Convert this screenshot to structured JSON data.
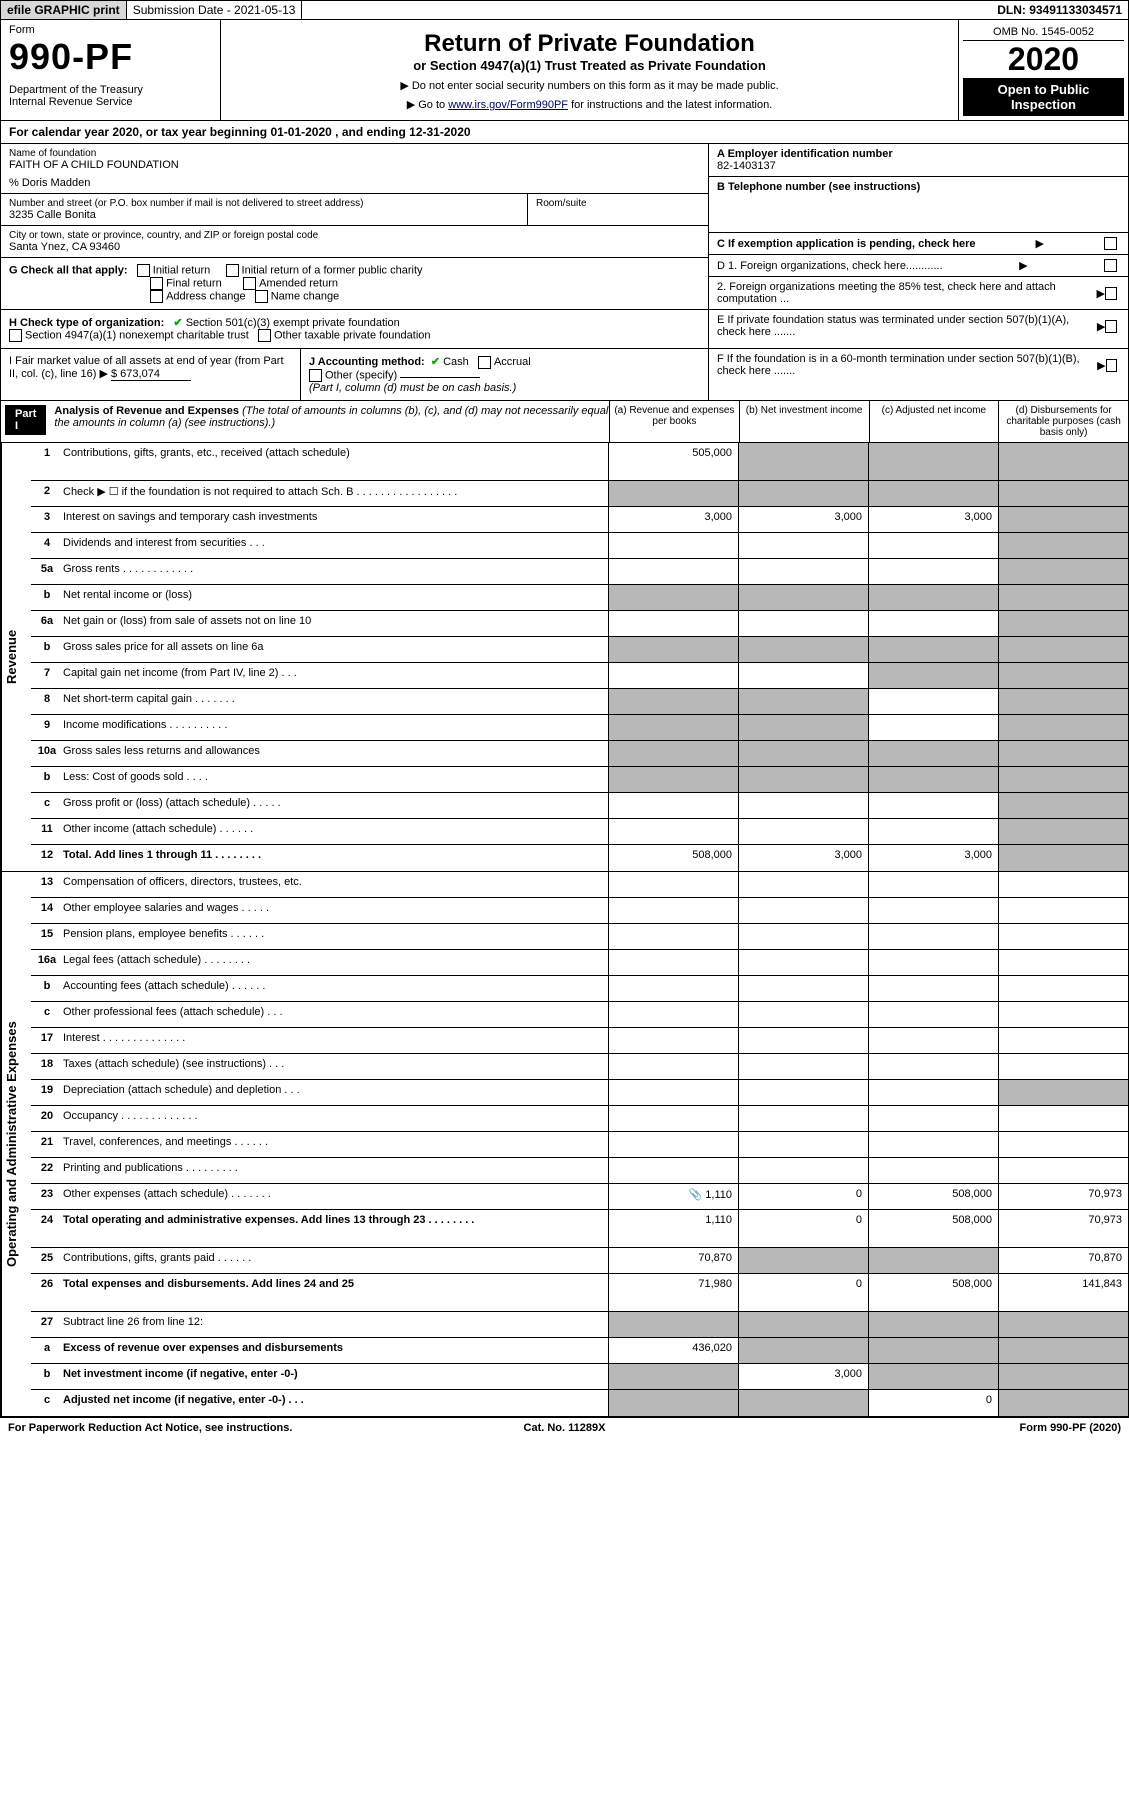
{
  "top": {
    "print": "efile GRAPHIC print",
    "subm": "Submission Date - 2021-05-13",
    "dln": "DLN: 93491133034571"
  },
  "header": {
    "form": "Form",
    "number": "990-PF",
    "dept": "Department of the Treasury\nInternal Revenue Service",
    "title": "Return of Private Foundation",
    "subtitle": "or Section 4947(a)(1) Trust Treated as Private Foundation",
    "instr1": "▶ Do not enter social security numbers on this form as it may be made public.",
    "instr2a": "▶ Go to ",
    "instr2_link": "www.irs.gov/Form990PF",
    "instr2b": " for instructions and the latest information.",
    "omb": "OMB No. 1545-0052",
    "year": "2020",
    "open": "Open to Public Inspection"
  },
  "cal": "For calendar year 2020, or tax year beginning 01-01-2020            , and ending 12-31-2020",
  "org": {
    "name_label": "Name of foundation",
    "name": "FAITH OF A CHILD FOUNDATION",
    "co": "% Doris Madden",
    "addr_label": "Number and street (or P.O. box number if mail is not delivered to street address)",
    "addr": "3235 Calle Bonita",
    "room_label": "Room/suite",
    "city_label": "City or town, state or province, country, and ZIP or foreign postal code",
    "city": "Santa Ynez, CA  93460",
    "ein_label": "A Employer identification number",
    "ein": "82-1403137",
    "tel_label": "B Telephone number (see instructions)",
    "c_label": "C If exemption application is pending, check here"
  },
  "checks": {
    "g_label": "G Check all that apply:",
    "g1": "Initial return",
    "g2": "Initial return of a former public charity",
    "g3": "Final return",
    "g4": "Amended return",
    "g5": "Address change",
    "g6": "Name change",
    "h_label": "H Check type of organization:",
    "h1": "Section 501(c)(3) exempt private foundation",
    "h2": "Section 4947(a)(1) nonexempt charitable trust",
    "h3": "Other taxable private foundation",
    "i_label": "I Fair market value of all assets at end of year (from Part II, col. (c), line 16)",
    "i_val": "$ 673,074",
    "j_label": "J Accounting method:",
    "j1": "Cash",
    "j2": "Accrual",
    "j3": "Other (specify)",
    "j_note": "(Part I, column (d) must be on cash basis.)",
    "d1": "D 1. Foreign organizations, check here............",
    "d2": "2. Foreign organizations meeting the 85% test, check here and attach computation ...",
    "e": "E  If private foundation status was terminated under section 507(b)(1)(A), check here .......",
    "f": "F  If the foundation is in a 60-month termination under section 507(b)(1)(B), check here ......."
  },
  "part1": {
    "label": "Part I",
    "title": "Analysis of Revenue and Expenses",
    "title_note": " (The total of amounts in columns (b), (c), and (d) may not necessarily equal the amounts in column (a) (see instructions).)",
    "col_a": "(a)  Revenue and expenses per books",
    "col_b": "(b)  Net investment income",
    "col_c": "(c)  Adjusted net income",
    "col_d": "(d)  Disbursements for charitable purposes (cash basis only)"
  },
  "tabs": {
    "rev": "Revenue",
    "exp": "Operating and Administrative Expenses"
  },
  "rows": {
    "r1": {
      "n": "1",
      "d": "Contributions, gifts, grants, etc., received (attach schedule)",
      "a": "505,000"
    },
    "r2": {
      "n": "2",
      "d": "Check ▶ ☐ if the foundation is not required to attach Sch. B   .  .  .  .  .  .  .  .  .  .  .  .  .  .  .  .  ."
    },
    "r3": {
      "n": "3",
      "d": "Interest on savings and temporary cash investments",
      "a": "3,000",
      "b": "3,000",
      "c": "3,000"
    },
    "r4": {
      "n": "4",
      "d": "Dividends and interest from securities   .  .  ."
    },
    "r5a": {
      "n": "5a",
      "d": "Gross rents   .  .  .  .  .  .  .  .  .  .  .  ."
    },
    "r5b": {
      "n": "b",
      "d": "Net rental income or (loss)"
    },
    "r6a": {
      "n": "6a",
      "d": "Net gain or (loss) from sale of assets not on line 10"
    },
    "r6b": {
      "n": "b",
      "d": "Gross sales price for all assets on line 6a"
    },
    "r7": {
      "n": "7",
      "d": "Capital gain net income (from Part IV, line 2)   .  .  ."
    },
    "r8": {
      "n": "8",
      "d": "Net short-term capital gain   .  .  .  .  .  .  ."
    },
    "r9": {
      "n": "9",
      "d": "Income modifications   .  .  .  .  .  .  .  .  .  ."
    },
    "r10a": {
      "n": "10a",
      "d": "Gross sales less returns and allowances"
    },
    "r10b": {
      "n": "b",
      "d": "Less: Cost of goods sold   .  .  .  ."
    },
    "r10c": {
      "n": "c",
      "d": "Gross profit or (loss) (attach schedule)   .  .  .  .  ."
    },
    "r11": {
      "n": "11",
      "d": "Other income (attach schedule)   .  .  .  .  .  ."
    },
    "r12": {
      "n": "12",
      "d": "Total. Add lines 1 through 11   .  .  .  .  .  .  .  .",
      "a": "508,000",
      "b": "3,000",
      "c": "3,000"
    },
    "r13": {
      "n": "13",
      "d": "Compensation of officers, directors, trustees, etc."
    },
    "r14": {
      "n": "14",
      "d": "Other employee salaries and wages   .  .  .  .  ."
    },
    "r15": {
      "n": "15",
      "d": "Pension plans, employee benefits   .  .  .  .  .  ."
    },
    "r16a": {
      "n": "16a",
      "d": "Legal fees (attach schedule)   .  .  .  .  .  .  .  ."
    },
    "r16b": {
      "n": "b",
      "d": "Accounting fees (attach schedule)   .  .  .  .  .  ."
    },
    "r16c": {
      "n": "c",
      "d": "Other professional fees (attach schedule)   .  .  ."
    },
    "r17": {
      "n": "17",
      "d": "Interest  .  .  .  .  .  .  .  .  .  .  .  .  .  ."
    },
    "r18": {
      "n": "18",
      "d": "Taxes (attach schedule) (see instructions)   .  .  ."
    },
    "r19": {
      "n": "19",
      "d": "Depreciation (attach schedule) and depletion    .  .  ."
    },
    "r20": {
      "n": "20",
      "d": "Occupancy  .  .  .  .  .  .  .  .  .  .  .  .  ."
    },
    "r21": {
      "n": "21",
      "d": "Travel, conferences, and meetings   .  .  .  .  .  ."
    },
    "r22": {
      "n": "22",
      "d": "Printing and publications   .  .  .  .  .  .  .  .  ."
    },
    "r23": {
      "n": "23",
      "d": "Other expenses (attach schedule)   .  .  .  .  .  .  .",
      "a": "1,110",
      "b": "0",
      "c": "508,000",
      "dd": "70,973",
      "icon": "📎"
    },
    "r24": {
      "n": "24",
      "d": "Total operating and administrative expenses. Add lines 13 through 23   .  .  .  .  .  .  .  .",
      "a": "1,110",
      "b": "0",
      "c": "508,000",
      "dd": "70,973"
    },
    "r25": {
      "n": "25",
      "d": "Contributions, gifts, grants paid   .  .  .  .  .  .",
      "a": "70,870",
      "dd": "70,870"
    },
    "r26": {
      "n": "26",
      "d": "Total expenses and disbursements. Add lines 24 and 25",
      "a": "71,980",
      "b": "0",
      "c": "508,000",
      "dd": "141,843"
    },
    "r27": {
      "n": "27",
      "d": "Subtract line 26 from line 12:"
    },
    "r27a": {
      "n": "a",
      "d": "Excess of revenue over expenses and disbursements",
      "a": "436,020"
    },
    "r27b": {
      "n": "b",
      "d": "Net investment income (if negative, enter -0-)",
      "b": "3,000"
    },
    "r27c": {
      "n": "c",
      "d": "Adjusted net income (if negative, enter -0-)    .  .  .",
      "c": "0"
    }
  },
  "footer": {
    "left": "For Paperwork Reduction Act Notice, see instructions.",
    "mid": "Cat. No. 11289X",
    "right": "Form 990-PF (2020)"
  }
}
